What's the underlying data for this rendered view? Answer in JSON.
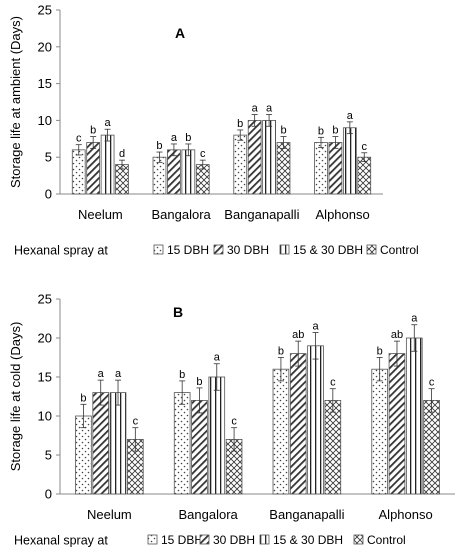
{
  "legend_label": "Hexanal spray at",
  "legend_entries": [
    "15 DBH",
    "30 DBH",
    "15 & 30 DBH",
    "Control"
  ],
  "chart_data": [
    {
      "type": "bar",
      "title": "A",
      "ylabel": "Storage life at ambient (Days)",
      "ylim": [
        0,
        25
      ],
      "yticks": [
        "0",
        "5",
        "10",
        "15",
        "20",
        "25"
      ],
      "categories": [
        "Neelum",
        "Bangalora",
        "Banganapalli",
        "Alphonso"
      ],
      "series": [
        {
          "name": "15 DBH",
          "values": [
            6,
            5,
            8,
            7
          ],
          "errors": [
            0.7,
            0.7,
            0.7,
            0.7
          ],
          "letters": [
            "c",
            "b",
            "b",
            "b"
          ]
        },
        {
          "name": "30 DBH",
          "values": [
            7,
            6,
            10,
            7
          ],
          "errors": [
            0.8,
            0.8,
            0.8,
            0.8
          ],
          "letters": [
            "b",
            "a",
            "a",
            "b"
          ]
        },
        {
          "name": "15 & 30 DBH",
          "values": [
            8,
            6,
            10,
            9
          ],
          "errors": [
            0.8,
            0.8,
            0.8,
            0.8
          ],
          "letters": [
            "a",
            "b",
            "a",
            "a"
          ]
        },
        {
          "name": "Control",
          "values": [
            4,
            4,
            7,
            5
          ],
          "errors": [
            0.6,
            0.6,
            0.8,
            0.6
          ],
          "letters": [
            "d",
            "c",
            "b",
            "c"
          ]
        }
      ]
    },
    {
      "type": "bar",
      "title": "B",
      "ylabel": "Storage life at cold (Days)",
      "ylim": [
        0,
        25
      ],
      "yticks": [
        "0",
        "5",
        "10",
        "15",
        "20",
        "25"
      ],
      "categories": [
        "Neelum",
        "Bangalora",
        "Banganapalli",
        "Alphonso"
      ],
      "series": [
        {
          "name": "15 DBH",
          "values": [
            10,
            13,
            16,
            16
          ],
          "errors": [
            1.5,
            1.5,
            1.5,
            1.5
          ],
          "letters": [
            "b",
            "b",
            "b",
            "b"
          ]
        },
        {
          "name": "30 DBH",
          "values": [
            13,
            12,
            18,
            18
          ],
          "errors": [
            1.6,
            1.6,
            1.6,
            1.6
          ],
          "letters": [
            "a",
            "b",
            "ab",
            "ab"
          ]
        },
        {
          "name": "15 & 30 DBH",
          "values": [
            13,
            15,
            19,
            20
          ],
          "errors": [
            1.6,
            1.7,
            1.7,
            1.7
          ],
          "letters": [
            "a",
            "a",
            "a",
            "a"
          ]
        },
        {
          "name": "Control",
          "values": [
            7,
            7,
            12,
            12
          ],
          "errors": [
            1.5,
            1.5,
            1.5,
            1.5
          ],
          "letters": [
            "c",
            "c",
            "c",
            "c"
          ]
        }
      ]
    }
  ]
}
